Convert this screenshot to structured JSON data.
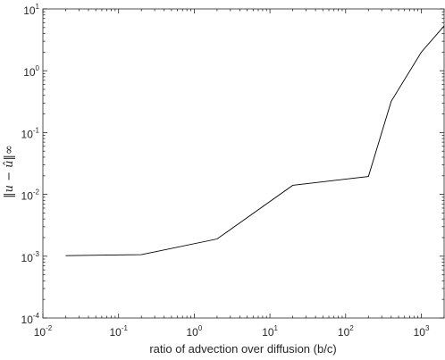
{
  "chart_data": {
    "type": "line",
    "xscale": "log",
    "yscale": "log",
    "xlim": [
      0.01,
      2000
    ],
    "ylim": [
      0.0001,
      10
    ],
    "xlabel": "ratio of advection over diffusion (b/c)",
    "ylabel": "‖u − û‖∞",
    "grid": false,
    "line_color": "#000000",
    "x_ticks": [
      {
        "base": "10",
        "exp": "-2"
      },
      {
        "base": "10",
        "exp": "-1"
      },
      {
        "base": "10",
        "exp": "0"
      },
      {
        "base": "10",
        "exp": "1"
      },
      {
        "base": "10",
        "exp": "2"
      },
      {
        "base": "10",
        "exp": "3"
      }
    ],
    "y_ticks": [
      {
        "base": "10",
        "exp": "-4"
      },
      {
        "base": "10",
        "exp": "-3"
      },
      {
        "base": "10",
        "exp": "-2"
      },
      {
        "base": "10",
        "exp": "-1"
      },
      {
        "base": "10",
        "exp": "0"
      },
      {
        "base": "10",
        "exp": "1"
      }
    ],
    "series": [
      {
        "x": [
          0.02,
          0.2,
          2,
          20,
          200,
          400,
          1000,
          2000
        ],
        "y": [
          0.00102,
          0.00106,
          0.0019,
          0.014,
          0.0195,
          0.32,
          2.0,
          5.3
        ]
      }
    ]
  }
}
